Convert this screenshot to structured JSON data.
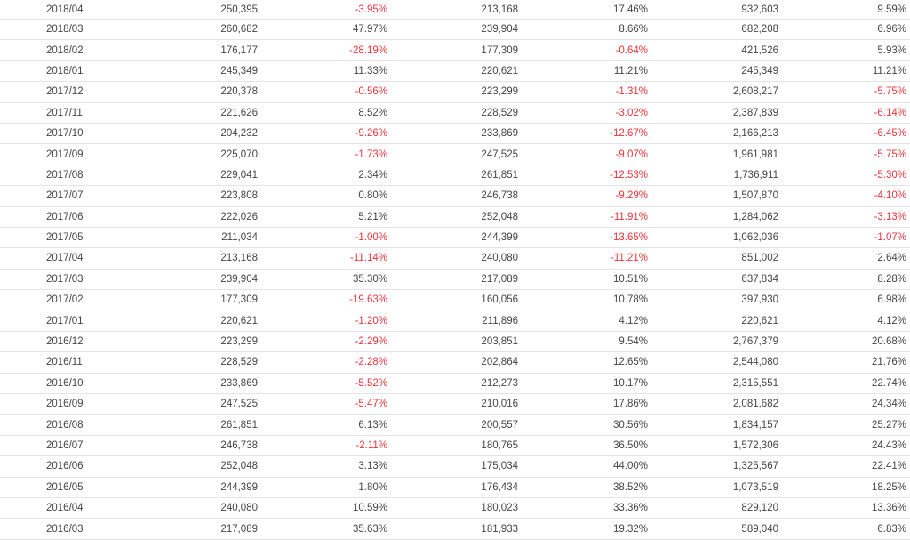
{
  "colors": {
    "text": "#444444",
    "negative": "#e8343b",
    "row_border": "#e4e4e4"
  },
  "rows": [
    [
      "2018/04",
      "250,395",
      "-3.95%",
      "213,168",
      "17.46%",
      "932,603",
      "9.59%"
    ],
    [
      "2018/03",
      "260,682",
      "47.97%",
      "239,904",
      "8.66%",
      "682,208",
      "6.96%"
    ],
    [
      "2018/02",
      "176,177",
      "-28.19%",
      "177,309",
      "-0.64%",
      "421,526",
      "5.93%"
    ],
    [
      "2018/01",
      "245,349",
      "11.33%",
      "220,621",
      "11.21%",
      "245,349",
      "11.21%"
    ],
    [
      "2017/12",
      "220,378",
      "-0.56%",
      "223,299",
      "-1.31%",
      "2,608,217",
      "-5.75%"
    ],
    [
      "2017/11",
      "221,626",
      "8.52%",
      "228,529",
      "-3.02%",
      "2,387,839",
      "-6.14%"
    ],
    [
      "2017/10",
      "204,232",
      "-9.26%",
      "233,869",
      "-12.67%",
      "2,166,213",
      "-6.45%"
    ],
    [
      "2017/09",
      "225,070",
      "-1.73%",
      "247,525",
      "-9.07%",
      "1,961,981",
      "-5.75%"
    ],
    [
      "2017/08",
      "229,041",
      "2.34%",
      "261,851",
      "-12.53%",
      "1,736,911",
      "-5.30%"
    ],
    [
      "2017/07",
      "223,808",
      "0.80%",
      "246,738",
      "-9.29%",
      "1,507,870",
      "-4.10%"
    ],
    [
      "2017/06",
      "222,026",
      "5.21%",
      "252,048",
      "-11.91%",
      "1,284,062",
      "-3.13%"
    ],
    [
      "2017/05",
      "211,034",
      "-1.00%",
      "244,399",
      "-13.65%",
      "1,062,036",
      "-1.07%"
    ],
    [
      "2017/04",
      "213,168",
      "-11.14%",
      "240,080",
      "-11.21%",
      "851,002",
      "2.64%"
    ],
    [
      "2017/03",
      "239,904",
      "35.30%",
      "217,089",
      "10.51%",
      "637,834",
      "8.28%"
    ],
    [
      "2017/02",
      "177,309",
      "-19.63%",
      "160,056",
      "10.78%",
      "397,930",
      "6.98%"
    ],
    [
      "2017/01",
      "220,621",
      "-1.20%",
      "211,896",
      "4.12%",
      "220,621",
      "4.12%"
    ],
    [
      "2016/12",
      "223,299",
      "-2.29%",
      "203,851",
      "9.54%",
      "2,767,379",
      "20.68%"
    ],
    [
      "2016/11",
      "228,529",
      "-2.28%",
      "202,864",
      "12.65%",
      "2,544,080",
      "21.76%"
    ],
    [
      "2016/10",
      "233,869",
      "-5.52%",
      "212,273",
      "10.17%",
      "2,315,551",
      "22.74%"
    ],
    [
      "2016/09",
      "247,525",
      "-5.47%",
      "210,016",
      "17.86%",
      "2,081,682",
      "24.34%"
    ],
    [
      "2016/08",
      "261,851",
      "6.13%",
      "200,557",
      "30.56%",
      "1,834,157",
      "25.27%"
    ],
    [
      "2016/07",
      "246,738",
      "-2.11%",
      "180,765",
      "36.50%",
      "1,572,306",
      "24.43%"
    ],
    [
      "2016/06",
      "252,048",
      "3.13%",
      "175,034",
      "44.00%",
      "1,325,567",
      "22.41%"
    ],
    [
      "2016/05",
      "244,399",
      "1.80%",
      "176,434",
      "38.52%",
      "1,073,519",
      "18.25%"
    ],
    [
      "2016/04",
      "240,080",
      "10.59%",
      "180,023",
      "33.36%",
      "829,120",
      "13.36%"
    ],
    [
      "2016/03",
      "217,089",
      "35.63%",
      "181,933",
      "19.32%",
      "589,040",
      "6.83%"
    ]
  ]
}
